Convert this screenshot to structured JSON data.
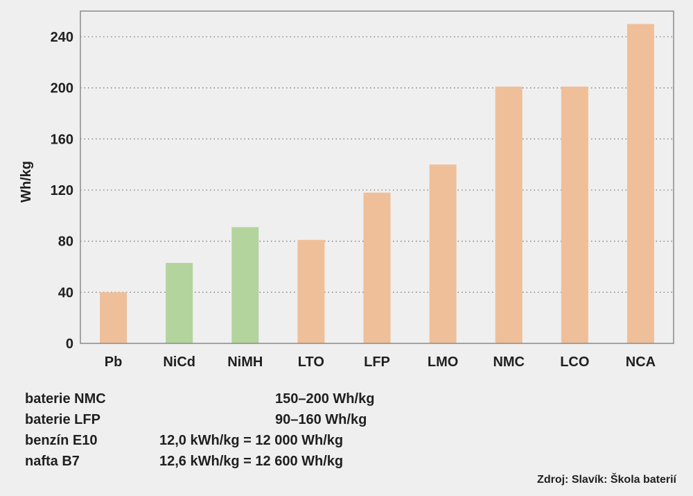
{
  "chart_data": {
    "type": "bar",
    "categories": [
      "Pb",
      "NiCd",
      "NiMH",
      "LTO",
      "LFP",
      "LMO",
      "NMC",
      "LCO",
      "NCA"
    ],
    "values": [
      40,
      63,
      91,
      81,
      118,
      140,
      201,
      201,
      250
    ],
    "bar_colors": [
      "#efbf99",
      "#b3d49c",
      "#b3d49c",
      "#efbf99",
      "#efbf99",
      "#efbf99",
      "#efbf99",
      "#efbf99",
      "#efbf99"
    ],
    "ylabel": "Wh/kg",
    "xlabel": "",
    "ylim": [
      0,
      260
    ],
    "yticks": [
      0,
      40,
      80,
      120,
      160,
      200,
      240
    ],
    "grid": true,
    "colors": {
      "orange": "#efbf99",
      "green": "#b3d49c",
      "grid": "#7a7a7a",
      "frame": "#8a8a8a"
    }
  },
  "notes": [
    {
      "label": "baterie NMC",
      "value": "150–200 Wh/kg"
    },
    {
      "label": "baterie LFP",
      "value": "90–160 Wh/kg"
    },
    {
      "label": "benzín E10",
      "value": "12,0 kWh/kg = 12 000 Wh/kg"
    },
    {
      "label": "nafta B7",
      "value": "12,6 kWh/kg = 12 600 Wh/kg"
    }
  ],
  "source": "Zdroj: Slavík: Škola baterií"
}
